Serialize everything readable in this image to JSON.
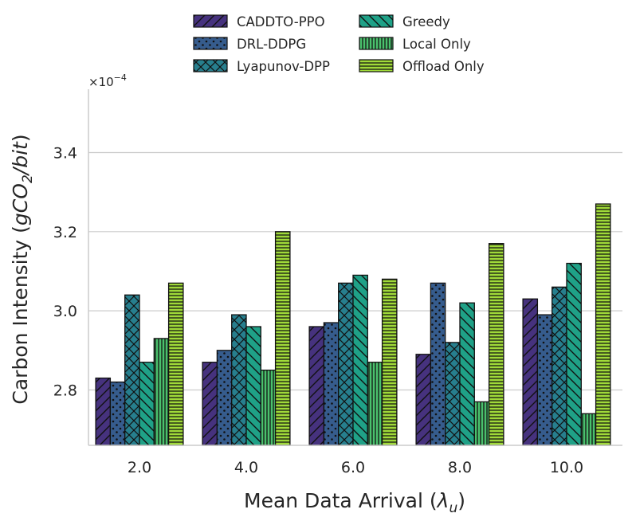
{
  "chart_data": {
    "type": "bar",
    "title": "",
    "xlabel": "Mean Data Arrival (λ_u)",
    "xlabel_main": "Mean Data Arrival (",
    "xlabel_symbol": "λ",
    "xlabel_sub": "u",
    "xlabel_close": ")",
    "ylabel": "Carbon Intensity (gCO2/bit)",
    "ylabel_main": "Carbon Intensity (",
    "ylabel_italic_1": "gCO",
    "ylabel_sub": "2",
    "ylabel_italic_2": "/bit",
    "ylabel_close": ")",
    "y_multiplier": "×10",
    "y_exponent": "−4",
    "categories": [
      "2.0",
      "4.0",
      "6.0",
      "8.0",
      "10.0"
    ],
    "ylim": [
      2.66,
      3.56
    ],
    "yticks": [
      2.8,
      3.0,
      3.2,
      3.4
    ],
    "ytick_labels": [
      "2.8",
      "3.0",
      "3.2",
      "3.4"
    ],
    "grid": "horizontal",
    "legend_position": "top-center, outside",
    "series": [
      {
        "name": "CADDTO-PPO",
        "color": "#46327e",
        "hatch": "diag-up",
        "values": [
          2.83,
          2.87,
          2.96,
          2.89,
          3.03
        ]
      },
      {
        "name": "DRL-DDPG",
        "color": "#365c8d",
        "hatch": "dots",
        "values": [
          2.82,
          2.9,
          2.97,
          3.07,
          2.99
        ]
      },
      {
        "name": "Lyapunov-DPP",
        "color": "#277f8e",
        "hatch": "cross",
        "values": [
          3.04,
          2.99,
          3.07,
          2.92,
          3.06
        ]
      },
      {
        "name": "Greedy",
        "color": "#1fa187",
        "hatch": "diag-down",
        "values": [
          2.87,
          2.96,
          3.09,
          3.02,
          3.12
        ]
      },
      {
        "name": "Local Only",
        "color": "#4ac16d",
        "hatch": "vertical",
        "values": [
          2.93,
          2.85,
          2.87,
          2.77,
          2.74
        ]
      },
      {
        "name": "Offload Only",
        "color": "#a0da39",
        "hatch": "horizontal",
        "values": [
          3.07,
          3.2,
          3.08,
          3.17,
          3.27
        ]
      }
    ]
  }
}
